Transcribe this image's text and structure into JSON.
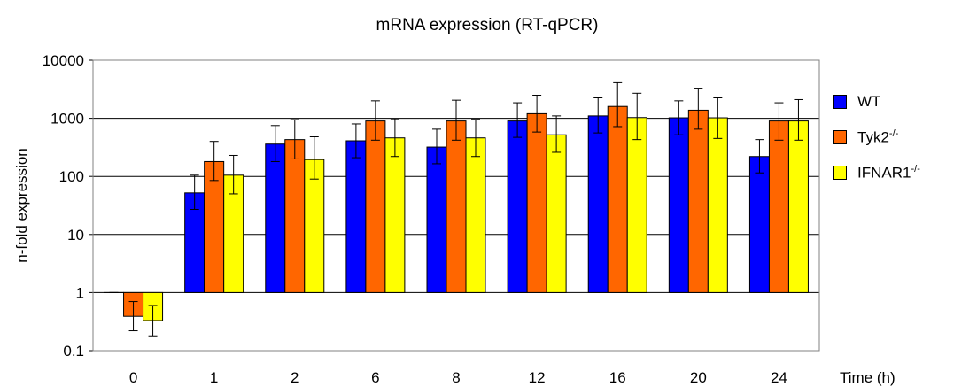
{
  "chart_data": {
    "type": "bar",
    "title": "mRNA expression (RT-qPCR)",
    "xlabel": "Time (h)",
    "ylabel": "n-fold expression",
    "yscale": "log",
    "ylim": [
      0.1,
      10000
    ],
    "yticks": [
      "0.1",
      "1",
      "10",
      "100",
      "1000",
      "10000"
    ],
    "grid": true,
    "legend_position": "right",
    "categories": [
      "0",
      "1",
      "2",
      "6",
      "8",
      "12",
      "16",
      "20",
      "24"
    ],
    "series": [
      {
        "name": "WT",
        "name_base": "WT",
        "name_sup": "",
        "color": "#0000FF",
        "values": [
          1,
          52,
          360,
          410,
          320,
          900,
          1100,
          1020,
          220
        ],
        "err_high": [
          1,
          105,
          750,
          800,
          650,
          1850,
          2250,
          2000,
          430
        ],
        "err_low": [
          1,
          27,
          180,
          210,
          165,
          470,
          560,
          520,
          115
        ]
      },
      {
        "name": "Tyk2-/-",
        "name_base": "Tyk2",
        "name_sup": "-/-",
        "color": "#FF6600",
        "values": [
          0.39,
          180,
          430,
          900,
          900,
          1200,
          1600,
          1380,
          900
        ],
        "err_high": [
          0.7,
          400,
          950,
          2000,
          2050,
          2500,
          4100,
          3300,
          1850
        ],
        "err_low": [
          0.22,
          85,
          200,
          420,
          420,
          580,
          720,
          650,
          420
        ]
      },
      {
        "name": "IFNAR1-/-",
        "name_base": "IFNAR1",
        "name_sup": "-/-",
        "color": "#FFFF00",
        "values": [
          0.33,
          105,
          195,
          460,
          460,
          520,
          1030,
          1020,
          900
        ],
        "err_high": [
          0.6,
          230,
          480,
          980,
          960,
          1100,
          2700,
          2250,
          2100
        ],
        "err_low": [
          0.18,
          50,
          90,
          220,
          220,
          260,
          430,
          450,
          420
        ]
      }
    ]
  }
}
